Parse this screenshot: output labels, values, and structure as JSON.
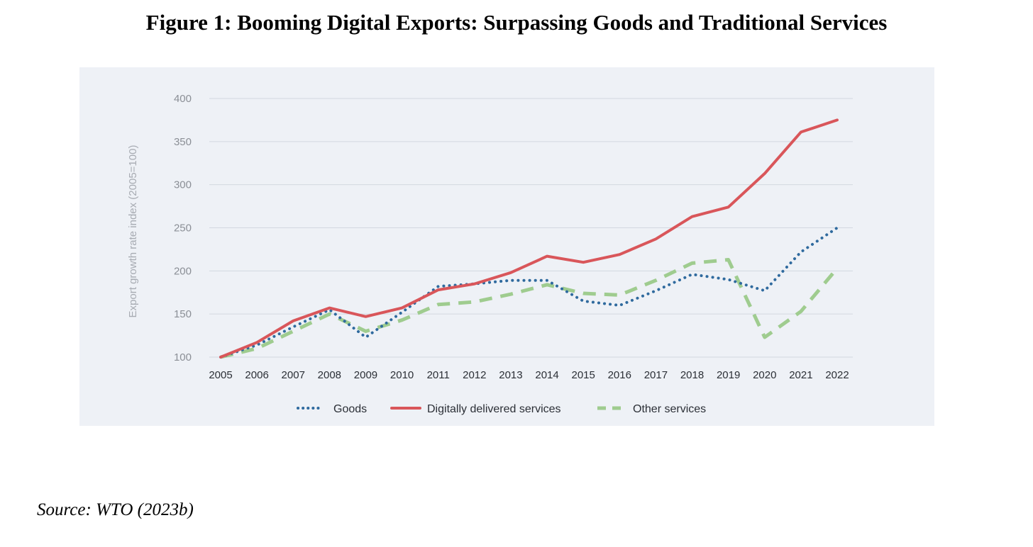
{
  "figure": {
    "title": "Figure 1: Booming Digital Exports: Surpassing Goods and Traditional Services",
    "source": "Source: WTO (2023b)"
  },
  "chart_data": {
    "type": "line",
    "title": "",
    "xlabel": "",
    "ylabel": "Export growth rate index (2005=100)",
    "x": [
      "2005",
      "2006",
      "2007",
      "2008",
      "2009",
      "2010",
      "2011",
      "2012",
      "2013",
      "2014",
      "2015",
      "2016",
      "2017",
      "2018",
      "2019",
      "2020",
      "2021",
      "2022"
    ],
    "ylim": [
      100,
      400
    ],
    "yticks": [
      "100",
      "150",
      "200",
      "250",
      "300",
      "350",
      "400"
    ],
    "grid": true,
    "legend_position": "bottom",
    "series": [
      {
        "name": "Goods",
        "style": "dotted",
        "color": "#2f6a9e",
        "values": [
          100,
          114,
          135,
          155,
          123,
          152,
          182,
          185,
          189,
          189,
          165,
          160,
          177,
          196,
          190,
          177,
          222,
          250
        ]
      },
      {
        "name": "Digitally delivered services",
        "style": "solid",
        "color": "#d9565a",
        "values": [
          100,
          117,
          142,
          157,
          147,
          157,
          178,
          185,
          198,
          217,
          210,
          219,
          237,
          263,
          274,
          313,
          361,
          375
        ]
      },
      {
        "name": "Other services",
        "style": "dashed",
        "color": "#9fcc8f",
        "values": [
          100,
          110,
          130,
          150,
          130,
          143,
          161,
          164,
          173,
          184,
          174,
          172,
          189,
          209,
          213,
          123,
          153,
          203
        ]
      }
    ]
  }
}
